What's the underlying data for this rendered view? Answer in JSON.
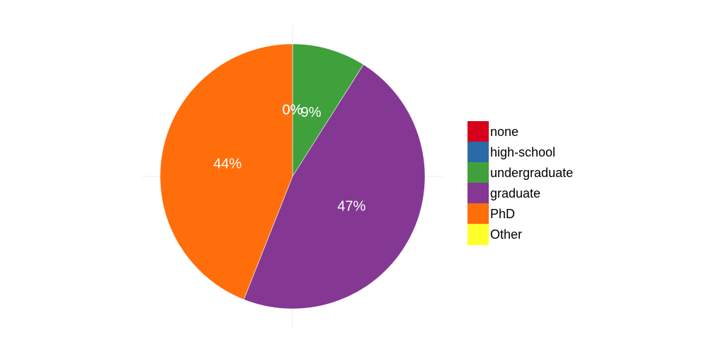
{
  "chart_data": {
    "type": "pie",
    "categories": [
      "none",
      "high-school",
      "undergraduate",
      "graduate",
      "PhD",
      "Other"
    ],
    "values": [
      0,
      0,
      9,
      47,
      44,
      0
    ],
    "labels": [
      "0%",
      "0%",
      "9%",
      "47%",
      "44%",
      "0%"
    ],
    "colors": [
      "#e41a1c",
      "#377eb8",
      "#4daf4a",
      "#984ea3",
      "#ff7f00",
      "#ffff33"
    ],
    "slice_colors": [
      "#d7001b",
      "#2b6aa7",
      "#40a03b",
      "#843893",
      "#ff6e0a",
      "#ffff2b"
    ],
    "start": "top",
    "direction": "clockwise",
    "legend_position": "right",
    "grid": true
  }
}
